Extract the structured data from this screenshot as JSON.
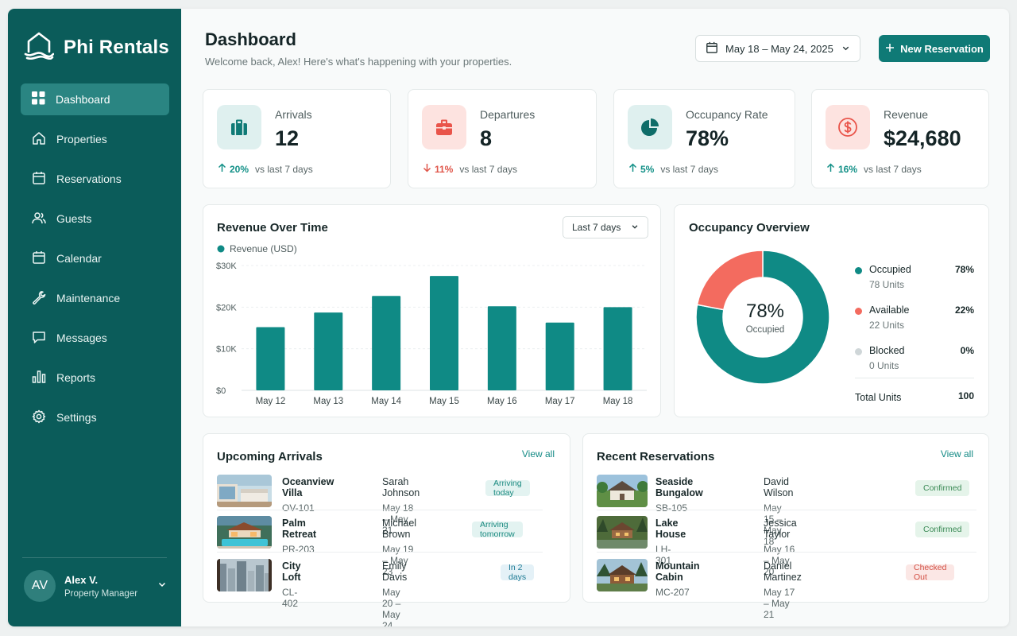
{
  "brand": {
    "name": "Phi Rentals"
  },
  "sidebar": {
    "items": [
      {
        "label": "Dashboard",
        "icon": "grid-icon",
        "active": true
      },
      {
        "label": "Properties",
        "icon": "home-icon"
      },
      {
        "label": "Reservations",
        "icon": "calendar-icon"
      },
      {
        "label": "Guests",
        "icon": "users-icon"
      },
      {
        "label": "Calendar",
        "icon": "calendar-icon"
      },
      {
        "label": "Maintenance",
        "icon": "wrench-icon"
      },
      {
        "label": "Messages",
        "icon": "message-icon"
      },
      {
        "label": "Reports",
        "icon": "bar-chart-icon"
      },
      {
        "label": "Settings",
        "icon": "gear-icon"
      }
    ],
    "user": {
      "initials": "AV",
      "name": "Alex V.",
      "role": "Property Manager"
    }
  },
  "header": {
    "title": "Dashboard",
    "subtitle": "Welcome back, Alex! Here's what's happening with your properties.",
    "date_range": "May 18 – May 24, 2025",
    "new_button": "New Reservation"
  },
  "stats": [
    {
      "label": "Arrivals",
      "value": "12",
      "change": "20%",
      "direction": "up",
      "compare": "vs last 7 days",
      "icon": "suitcase-icon"
    },
    {
      "label": "Departures",
      "value": "8",
      "change": "11%",
      "direction": "down",
      "compare": "vs last 7 days",
      "icon": "briefcase-icon"
    },
    {
      "label": "Occupancy Rate",
      "value": "78%",
      "change": "5%",
      "direction": "up",
      "compare": "vs last 7 days",
      "icon": "pie-chart-icon"
    },
    {
      "label": "Revenue",
      "value": "$24,680",
      "change": "16%",
      "direction": "up",
      "compare": "vs last 7 days",
      "icon": "dollar-icon"
    }
  ],
  "revenue_panel": {
    "title": "Revenue Over Time",
    "range": "Last 7 days"
  },
  "occupancy_panel": {
    "title": "Occupancy Overview",
    "center_value": "78%",
    "center_label": "Occupied",
    "legend": [
      {
        "name": "Occupied",
        "units": "78 Units",
        "pct": "78%",
        "color": "#0f8a85"
      },
      {
        "name": "Available",
        "units": "22 Units",
        "pct": "22%",
        "color": "#f36b5f"
      },
      {
        "name": "Blocked",
        "units": "0 Units",
        "pct": "0%",
        "color": "#cfd6d8"
      }
    ],
    "total_label": "Total Units",
    "total_value": "100"
  },
  "chart_data": [
    {
      "type": "bar",
      "legend": "Revenue (USD)",
      "categories": [
        "May 12",
        "May 13",
        "May 14",
        "May 15",
        "May 16",
        "May 17",
        "May 18"
      ],
      "series": [
        {
          "name": "Revenue (USD)",
          "values": [
            15200,
            18700,
            22700,
            27500,
            20200,
            16300,
            20000
          ]
        }
      ],
      "ylim": [
        0,
        30000
      ],
      "yticks": [
        "$0",
        "$10K",
        "$20K",
        "$30K"
      ],
      "color": "#0f8a85",
      "grid": true
    },
    {
      "type": "pie",
      "categories": [
        "Occupied",
        "Available",
        "Blocked"
      ],
      "values": [
        78,
        22,
        0
      ],
      "colors": [
        "#0f8a85",
        "#f36b5f",
        "#cfd6d8"
      ]
    }
  ],
  "upcoming": {
    "title": "Upcoming Arrivals",
    "view_all": "View all",
    "rows": [
      {
        "property": "Oceanview Villa",
        "code": "OV-101",
        "guest": "Sarah Johnson",
        "dates": "May 18 – May 21",
        "status": "Arriving today",
        "tone": "teal"
      },
      {
        "property": "Palm Retreat",
        "code": "PR-203",
        "guest": "Michael Brown",
        "dates": "May 19 – May 23",
        "status": "Arriving tomorrow",
        "tone": "teal"
      },
      {
        "property": "City Loft",
        "code": "CL-402",
        "guest": "Emily Davis",
        "dates": "May 20 – May 24",
        "status": "In 2 days",
        "tone": "blue"
      }
    ]
  },
  "recent": {
    "title": "Recent Reservations",
    "view_all": "View all",
    "rows": [
      {
        "property": "Seaside Bungalow",
        "code": "SB-105",
        "guest": "David Wilson",
        "dates": "May 15 – May 18",
        "status": "Confirmed",
        "tone": "green"
      },
      {
        "property": "Lake House",
        "code": "LH-301",
        "guest": "Jessica Taylor",
        "dates": "May 16 – May 20",
        "status": "Confirmed",
        "tone": "green"
      },
      {
        "property": "Mountain Cabin",
        "code": "MC-207",
        "guest": "Daniel Martinez",
        "dates": "May 17 – May 21",
        "status": "Checked Out",
        "tone": "red"
      }
    ]
  }
}
